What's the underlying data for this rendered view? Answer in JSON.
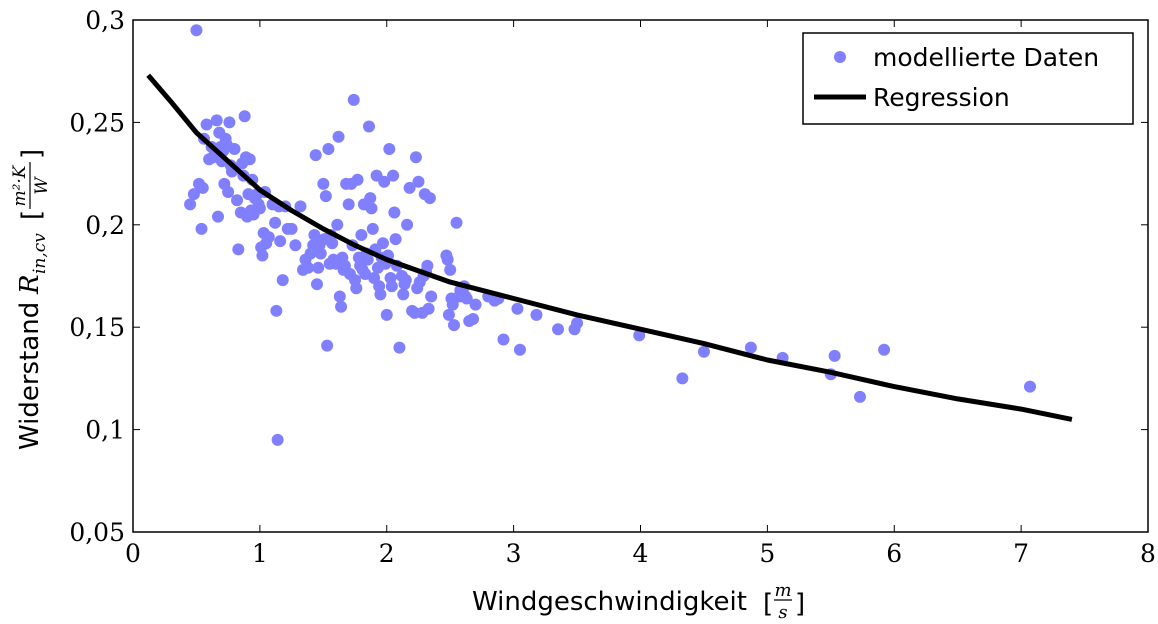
{
  "chart_data": {
    "type": "scatter",
    "xlabel": "Windgeschwindigkeit",
    "xunit_num": "m",
    "xunit_den": "s",
    "ylabel": "Widerstand",
    "ylabel_symbol": "R",
    "ylabel_subscript": "in,cv",
    "yunit_num": "m²·K",
    "yunit_den": "W",
    "xlim": [
      0,
      8
    ],
    "ylim": [
      0.05,
      0.3
    ],
    "xticks": [
      0,
      1,
      2,
      3,
      4,
      5,
      6,
      7,
      8
    ],
    "xtick_labels": [
      "0",
      "1",
      "2",
      "3",
      "4",
      "5",
      "6",
      "7",
      "8"
    ],
    "yticks": [
      0.05,
      0.1,
      0.15,
      0.2,
      0.25,
      0.3
    ],
    "ytick_labels": [
      "0,05",
      "0,1",
      "0,15",
      "0,2",
      "0,25",
      "0,3"
    ],
    "grid": false,
    "legend_position": "top-right",
    "colors": {
      "scatter": "#8080ff",
      "regression": "#000000"
    },
    "series": [
      {
        "name": "modellierte Daten",
        "kind": "scatter",
        "points": [
          [
            0.5,
            0.295
          ],
          [
            0.45,
            0.21
          ],
          [
            0.48,
            0.215
          ],
          [
            0.52,
            0.22
          ],
          [
            0.54,
            0.198
          ],
          [
            0.55,
            0.218
          ],
          [
            0.56,
            0.242
          ],
          [
            0.58,
            0.249
          ],
          [
            0.6,
            0.232
          ],
          [
            0.62,
            0.238
          ],
          [
            0.63,
            0.233
          ],
          [
            0.65,
            0.236
          ],
          [
            0.66,
            0.251
          ],
          [
            0.67,
            0.204
          ],
          [
            0.68,
            0.245
          ],
          [
            0.69,
            0.238
          ],
          [
            0.7,
            0.231
          ],
          [
            0.71,
            0.236
          ],
          [
            0.72,
            0.22
          ],
          [
            0.73,
            0.242
          ],
          [
            0.74,
            0.239
          ],
          [
            0.75,
            0.216
          ],
          [
            0.76,
            0.25
          ],
          [
            0.77,
            0.229
          ],
          [
            0.78,
            0.226
          ],
          [
            0.8,
            0.237
          ],
          [
            0.82,
            0.212
          ],
          [
            0.83,
            0.188
          ],
          [
            0.85,
            0.206
          ],
          [
            0.86,
            0.23
          ],
          [
            0.87,
            0.224
          ],
          [
            0.88,
            0.253
          ],
          [
            0.89,
            0.233
          ],
          [
            0.9,
            0.204
          ],
          [
            0.91,
            0.215
          ],
          [
            0.92,
            0.232
          ],
          [
            0.93,
            0.207
          ],
          [
            0.94,
            0.222
          ],
          [
            0.95,
            0.205
          ],
          [
            0.96,
            0.213
          ],
          [
            0.98,
            0.215
          ],
          [
            0.99,
            0.21
          ],
          [
            1.0,
            0.208
          ],
          [
            1.01,
            0.189
          ],
          [
            1.02,
            0.185
          ],
          [
            1.03,
            0.196
          ],
          [
            1.04,
            0.216
          ],
          [
            1.05,
            0.191
          ],
          [
            1.07,
            0.194
          ],
          [
            1.1,
            0.21
          ],
          [
            1.12,
            0.201
          ],
          [
            1.13,
            0.158
          ],
          [
            1.14,
            0.095
          ],
          [
            1.15,
            0.209
          ],
          [
            1.16,
            0.192
          ],
          [
            1.18,
            0.173
          ],
          [
            1.2,
            0.209
          ],
          [
            1.22,
            0.198
          ],
          [
            1.25,
            0.198
          ],
          [
            1.28,
            0.19
          ],
          [
            1.32,
            0.209
          ],
          [
            1.34,
            0.178
          ],
          [
            1.36,
            0.183
          ],
          [
            1.38,
            0.179
          ],
          [
            1.4,
            0.186
          ],
          [
            1.42,
            0.19
          ],
          [
            1.43,
            0.195
          ],
          [
            1.44,
            0.234
          ],
          [
            1.45,
            0.171
          ],
          [
            1.46,
            0.179
          ],
          [
            1.47,
            0.19
          ],
          [
            1.48,
            0.186
          ],
          [
            1.5,
            0.22
          ],
          [
            1.51,
            0.193
          ],
          [
            1.52,
            0.214
          ],
          [
            1.53,
            0.141
          ],
          [
            1.54,
            0.237
          ],
          [
            1.55,
            0.181
          ],
          [
            1.56,
            0.195
          ],
          [
            1.57,
            0.191
          ],
          [
            1.58,
            0.183
          ],
          [
            1.6,
            0.181
          ],
          [
            1.61,
            0.2
          ],
          [
            1.62,
            0.243
          ],
          [
            1.63,
            0.165
          ],
          [
            1.64,
            0.16
          ],
          [
            1.65,
            0.184
          ],
          [
            1.66,
            0.178
          ],
          [
            1.67,
            0.18
          ],
          [
            1.68,
            0.22
          ],
          [
            1.7,
            0.21
          ],
          [
            1.71,
            0.176
          ],
          [
            1.72,
            0.22
          ],
          [
            1.73,
            0.19
          ],
          [
            1.74,
            0.261
          ],
          [
            1.75,
            0.173
          ],
          [
            1.76,
            0.169
          ],
          [
            1.77,
            0.222
          ],
          [
            1.78,
            0.184
          ],
          [
            1.79,
            0.18
          ],
          [
            1.8,
            0.195
          ],
          [
            1.81,
            0.178
          ],
          [
            1.82,
            0.21
          ],
          [
            1.83,
            0.176
          ],
          [
            1.84,
            0.186
          ],
          [
            1.85,
            0.183
          ],
          [
            1.86,
            0.248
          ],
          [
            1.87,
            0.213
          ],
          [
            1.88,
            0.208
          ],
          [
            1.89,
            0.198
          ],
          [
            1.9,
            0.174
          ],
          [
            1.91,
            0.188
          ],
          [
            1.92,
            0.224
          ],
          [
            1.93,
            0.179
          ],
          [
            1.94,
            0.17
          ],
          [
            1.95,
            0.166
          ],
          [
            1.96,
            0.184
          ],
          [
            1.97,
            0.191
          ],
          [
            1.98,
            0.221
          ],
          [
            1.99,
            0.181
          ],
          [
            2.0,
            0.156
          ],
          [
            2.01,
            0.185
          ],
          [
            2.02,
            0.237
          ],
          [
            2.03,
            0.174
          ],
          [
            2.04,
            0.17
          ],
          [
            2.05,
            0.224
          ],
          [
            2.06,
            0.206
          ],
          [
            2.07,
            0.193
          ],
          [
            2.08,
            0.18
          ],
          [
            2.1,
            0.14
          ],
          [
            2.12,
            0.175
          ],
          [
            2.13,
            0.166
          ],
          [
            2.14,
            0.171
          ],
          [
            2.15,
            0.173
          ],
          [
            2.16,
            0.2
          ],
          [
            2.18,
            0.218
          ],
          [
            2.2,
            0.158
          ],
          [
            2.22,
            0.157
          ],
          [
            2.23,
            0.233
          ],
          [
            2.24,
            0.169
          ],
          [
            2.25,
            0.221
          ],
          [
            2.26,
            0.172
          ],
          [
            2.28,
            0.157
          ],
          [
            2.29,
            0.175
          ],
          [
            2.3,
            0.215
          ],
          [
            2.31,
            0.177
          ],
          [
            2.32,
            0.18
          ],
          [
            2.33,
            0.159
          ],
          [
            2.34,
            0.213
          ],
          [
            2.35,
            0.165
          ],
          [
            2.47,
            0.185
          ],
          [
            2.48,
            0.183
          ],
          [
            2.49,
            0.156
          ],
          [
            2.5,
            0.178
          ],
          [
            2.51,
            0.164
          ],
          [
            2.52,
            0.161
          ],
          [
            2.53,
            0.151
          ],
          [
            2.55,
            0.201
          ],
          [
            2.57,
            0.165
          ],
          [
            2.58,
            0.168
          ],
          [
            2.6,
            0.167
          ],
          [
            2.61,
            0.17
          ],
          [
            2.62,
            0.165
          ],
          [
            2.63,
            0.164
          ],
          [
            2.65,
            0.153
          ],
          [
            2.68,
            0.154
          ],
          [
            2.7,
            0.161
          ],
          [
            2.8,
            0.165
          ],
          [
            2.85,
            0.163
          ],
          [
            2.88,
            0.164
          ],
          [
            2.92,
            0.144
          ],
          [
            3.03,
            0.159
          ],
          [
            3.05,
            0.139
          ],
          [
            3.18,
            0.156
          ],
          [
            3.35,
            0.149
          ],
          [
            3.48,
            0.149
          ],
          [
            3.5,
            0.152
          ],
          [
            3.99,
            0.146
          ],
          [
            4.33,
            0.125
          ],
          [
            4.5,
            0.138
          ],
          [
            4.87,
            0.14
          ],
          [
            5.12,
            0.135
          ],
          [
            5.5,
            0.127
          ],
          [
            5.53,
            0.136
          ],
          [
            5.73,
            0.116
          ],
          [
            5.92,
            0.139
          ],
          [
            7.07,
            0.121
          ]
        ]
      },
      {
        "name": "Regression",
        "kind": "line",
        "points": [
          [
            0.12,
            0.273
          ],
          [
            0.3,
            0.26
          ],
          [
            0.5,
            0.245
          ],
          [
            0.75,
            0.231
          ],
          [
            1.0,
            0.217
          ],
          [
            1.25,
            0.207
          ],
          [
            1.5,
            0.198
          ],
          [
            1.75,
            0.19
          ],
          [
            2.0,
            0.183
          ],
          [
            2.5,
            0.172
          ],
          [
            3.0,
            0.164
          ],
          [
            3.5,
            0.156
          ],
          [
            4.0,
            0.149
          ],
          [
            4.5,
            0.142
          ],
          [
            5.0,
            0.134
          ],
          [
            5.5,
            0.128
          ],
          [
            6.0,
            0.121
          ],
          [
            6.5,
            0.115
          ],
          [
            7.0,
            0.11
          ],
          [
            7.4,
            0.105
          ]
        ]
      }
    ]
  }
}
